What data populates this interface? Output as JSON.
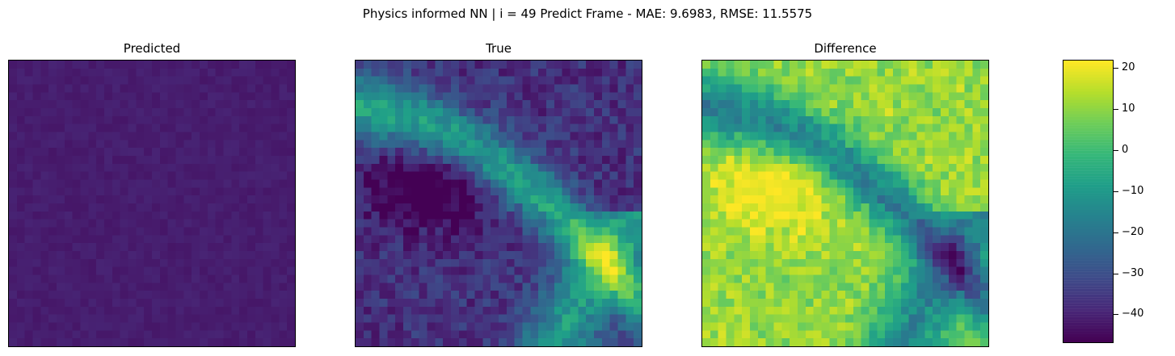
{
  "suptitle": "Physics informed NN | i = 49 Predict Frame - MAE: 9.6983, RMSE: 11.5575",
  "chart_data": [
    {
      "type": "heatmap",
      "title": "Predicted",
      "colormap": "viridis",
      "grid_size": 36,
      "axes_ticks": "none",
      "pattern": "nearly uniform low values close to the colormap minimum"
    },
    {
      "type": "heatmap",
      "title": "True",
      "colormap": "viridis",
      "grid_size": 36,
      "axes_ticks": "none",
      "pattern": "dark background with a brighter band curving from top-left toward bottom-right"
    },
    {
      "type": "heatmap",
      "title": "Difference",
      "colormap": "viridis",
      "grid_size": 36,
      "axes_ticks": "none",
      "pattern": "mostly yellow-green positive values with dark patches where True is high"
    },
    {
      "type": "colorbar",
      "colormap": "viridis",
      "vmin": -47,
      "vmax": 22,
      "ticks": [
        20,
        10,
        0,
        -10,
        -20,
        -30,
        -40
      ],
      "tick_labels": [
        "20",
        "10",
        "0",
        "−10",
        "−20",
        "−30",
        "−40"
      ]
    }
  ]
}
